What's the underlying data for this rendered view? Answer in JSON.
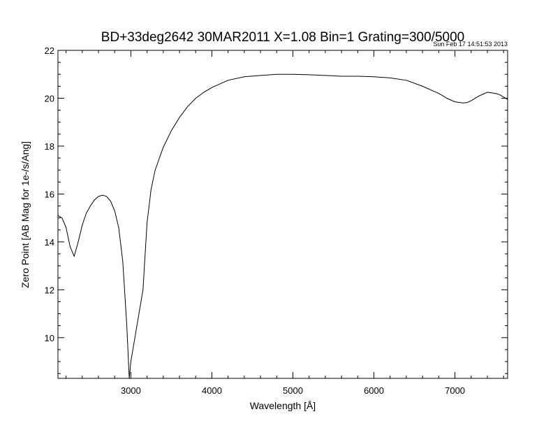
{
  "chart_data": {
    "type": "line",
    "title": "BD+33deg2642 30MAR2011 X=1.08 Bin=1 Grating=300/5000",
    "timestamp": "Sun Feb 17 14:51:53 2013",
    "xlabel": "Wavelength [Å]",
    "ylabel": "Zero Point [AB Mag for 1e-/s/Ang]",
    "xlim": [
      2100,
      7650
    ],
    "ylim": [
      8.3,
      22.0
    ],
    "xticks": [
      3000,
      4000,
      5000,
      6000,
      7000
    ],
    "yticks": [
      10,
      12,
      14,
      16,
      18,
      20,
      22
    ],
    "grid": false,
    "legend": "none",
    "line_color": "#000000",
    "series": [
      {
        "x": [
          2100,
          2150,
          2200,
          2250,
          2300,
          2350,
          2400,
          2450,
          2500,
          2550,
          2600,
          2650,
          2700,
          2750,
          2800,
          2850,
          2900,
          2950,
          2980,
          3000,
          3050,
          3100,
          3150,
          3200,
          3250,
          3300,
          3400,
          3500,
          3600,
          3700,
          3800,
          3900,
          4000,
          4200,
          4400,
          4600,
          4800,
          5000,
          5200,
          5400,
          5600,
          5800,
          6000,
          6200,
          6400,
          6600,
          6800,
          6900,
          7000,
          7100,
          7150,
          7200,
          7300,
          7400,
          7500,
          7550,
          7600,
          7650
        ],
        "y": [
          15.1,
          15.0,
          14.6,
          13.8,
          13.4,
          14.0,
          14.7,
          15.2,
          15.5,
          15.75,
          15.9,
          15.95,
          15.9,
          15.7,
          15.3,
          14.6,
          13.2,
          10.5,
          8.3,
          9.0,
          10.0,
          11.0,
          12.0,
          14.8,
          16.2,
          17.0,
          17.95,
          18.65,
          19.2,
          19.65,
          20.0,
          20.25,
          20.45,
          20.75,
          20.9,
          20.95,
          21.0,
          21.0,
          20.98,
          20.95,
          20.92,
          20.92,
          20.9,
          20.85,
          20.75,
          20.5,
          20.2,
          20.0,
          19.85,
          19.8,
          19.82,
          19.9,
          20.1,
          20.25,
          20.2,
          20.15,
          20.05,
          19.95
        ]
      }
    ]
  }
}
